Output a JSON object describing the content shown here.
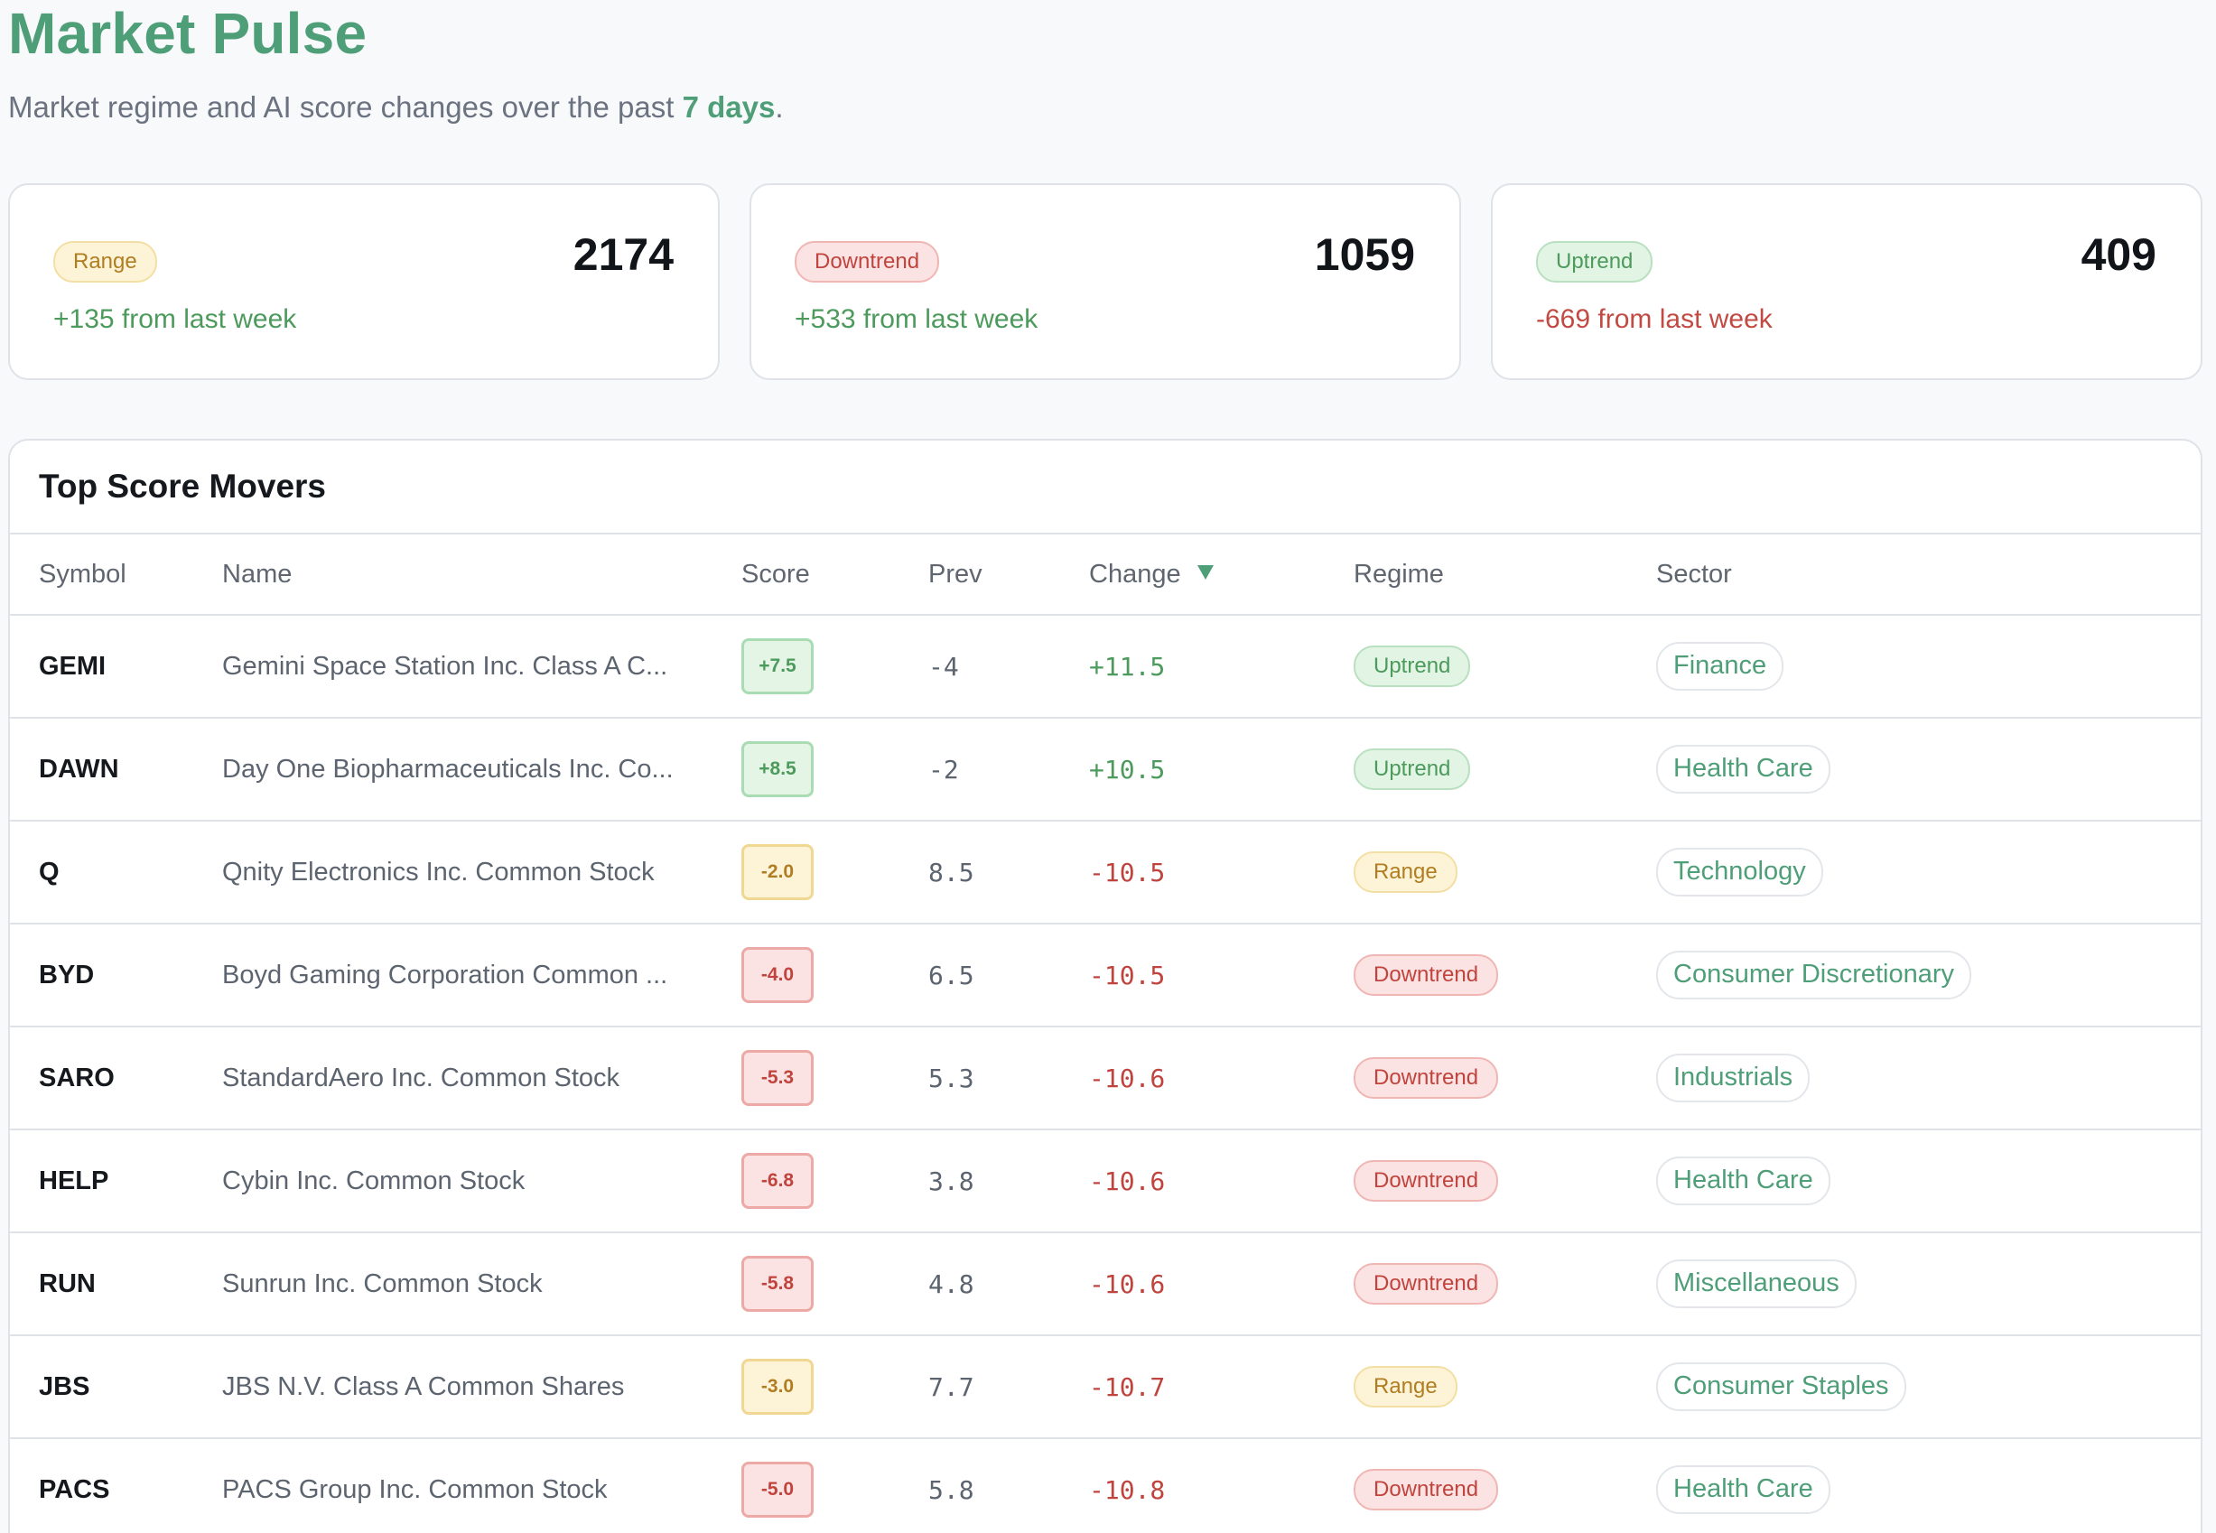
{
  "header": {
    "title": "Market Pulse",
    "subtitle_prefix": "Market regime and AI score changes over the past ",
    "subtitle_days": "7 days",
    "subtitle_suffix": "."
  },
  "colors": {
    "accent": "#4e9e78",
    "uptrend": "#4c9a5c",
    "downtrend": "#c0443d",
    "range": "#b07d22"
  },
  "cards": [
    {
      "regime": "Range",
      "count": "2174",
      "delta": "+135 from last week",
      "tone": "range",
      "delta_sign": "pos"
    },
    {
      "regime": "Downtrend",
      "count": "1059",
      "delta": "+533 from last week",
      "tone": "down",
      "delta_sign": "pos"
    },
    {
      "regime": "Uptrend",
      "count": "409",
      "delta": "-669 from last week",
      "tone": "up",
      "delta_sign": "neg"
    }
  ],
  "table": {
    "title": "Top Score Movers",
    "columns": {
      "symbol": "Symbol",
      "name": "Name",
      "score": "Score",
      "prev": "Prev",
      "change": "Change",
      "regime": "Regime",
      "sector": "Sector"
    },
    "sort_icon": "sort-desc-icon",
    "rows": [
      {
        "symbol": "GEMI",
        "name": "Gemini Space Station Inc. Class A C...",
        "score": "+7.5",
        "prev": "-4",
        "change": "+11.5",
        "regime": "Uptrend",
        "sector": "Finance"
      },
      {
        "symbol": "DAWN",
        "name": "Day One Biopharmaceuticals Inc. Co...",
        "score": "+8.5",
        "prev": "-2",
        "change": "+10.5",
        "regime": "Uptrend",
        "sector": "Health Care"
      },
      {
        "symbol": "Q",
        "name": "Qnity Electronics Inc. Common Stock",
        "score": "-2.0",
        "prev": "8.5",
        "change": "-10.5",
        "regime": "Range",
        "sector": "Technology"
      },
      {
        "symbol": "BYD",
        "name": "Boyd Gaming Corporation Common ...",
        "score": "-4.0",
        "prev": "6.5",
        "change": "-10.5",
        "regime": "Downtrend",
        "sector": "Consumer Discretionary"
      },
      {
        "symbol": "SARO",
        "name": "StandardAero Inc. Common Stock",
        "score": "-5.3",
        "prev": "5.3",
        "change": "-10.6",
        "regime": "Downtrend",
        "sector": "Industrials"
      },
      {
        "symbol": "HELP",
        "name": "Cybin Inc. Common Stock",
        "score": "-6.8",
        "prev": "3.8",
        "change": "-10.6",
        "regime": "Downtrend",
        "sector": "Health Care"
      },
      {
        "symbol": "RUN",
        "name": "Sunrun Inc. Common Stock",
        "score": "-5.8",
        "prev": "4.8",
        "change": "-10.6",
        "regime": "Downtrend",
        "sector": "Miscellaneous"
      },
      {
        "symbol": "JBS",
        "name": "JBS N.V. Class A Common Shares",
        "score": "-3.0",
        "prev": "7.7",
        "change": "-10.7",
        "regime": "Range",
        "sector": "Consumer Staples"
      },
      {
        "symbol": "PACS",
        "name": "PACS Group Inc. Common Stock",
        "score": "-5.0",
        "prev": "5.8",
        "change": "-10.8",
        "regime": "Downtrend",
        "sector": "Health Care"
      }
    ]
  }
}
